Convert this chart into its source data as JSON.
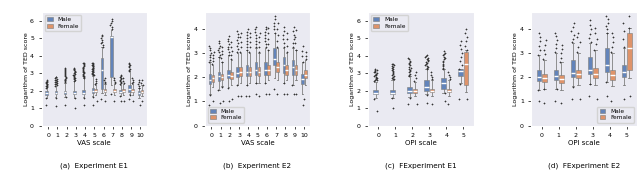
{
  "male_color": "#4C72B0",
  "female_color": "#C44E52",
  "male_color_alt": "#5B8DB8",
  "female_color_alt": "#CC6644",
  "subplot_titles": [
    "(a)  Experiment E1",
    "(b)  Experiment E2",
    "(c)  FExperiment E1",
    "(d)  FExperiment E2"
  ],
  "xlabel_ab": "VAS scale",
  "xlabel_cd": "OPI scale",
  "ylabel": "Logarithm of TED score",
  "face_color": "#EAEAF2",
  "e1_male": {
    "positions": [
      0,
      1,
      2,
      3,
      4,
      5,
      6,
      7,
      8,
      9,
      10
    ],
    "med": [
      1.87,
      1.88,
      1.9,
      1.89,
      1.87,
      2.0,
      3.2,
      5.05,
      1.95,
      2.1,
      1.87
    ],
    "q1": [
      1.77,
      1.78,
      1.8,
      1.79,
      1.78,
      1.88,
      2.1,
      2.8,
      1.85,
      1.95,
      1.77
    ],
    "q3": [
      1.96,
      1.97,
      2.0,
      2.0,
      2.05,
      2.15,
      3.85,
      5.1,
      2.05,
      2.3,
      1.96
    ],
    "whislo": [
      1.6,
      1.62,
      1.65,
      1.6,
      1.62,
      1.68,
      1.85,
      2.3,
      1.7,
      1.78,
      1.6
    ],
    "whishi": [
      2.15,
      2.25,
      2.45,
      2.55,
      2.7,
      2.85,
      4.5,
      5.5,
      2.35,
      3.1,
      2.15
    ],
    "n_fliers_above": [
      12,
      14,
      16,
      18,
      20,
      22,
      8,
      6,
      10,
      8,
      5
    ],
    "n_fliers_below": [
      2,
      2,
      2,
      2,
      2,
      2,
      1,
      1,
      2,
      2,
      1
    ],
    "fmax": [
      2.6,
      2.8,
      3.3,
      3.3,
      3.6,
      3.6,
      5.2,
      6.1,
      2.9,
      3.6,
      2.6
    ],
    "fmin": [
      1.2,
      1.1,
      1.15,
      1.0,
      1.18,
      1.15,
      1.5,
      1.8,
      1.4,
      1.5,
      1.2
    ]
  },
  "e1_female": {
    "positions": [
      5,
      6,
      7,
      8,
      9,
      10
    ],
    "med": [
      2.0,
      2.0,
      2.0,
      2.0,
      2.0,
      1.95
    ],
    "q1": [
      1.9,
      1.9,
      1.9,
      1.9,
      1.9,
      1.88
    ],
    "q3": [
      2.12,
      2.1,
      2.12,
      2.1,
      2.12,
      2.02
    ],
    "whislo": [
      1.75,
      1.75,
      1.75,
      1.75,
      1.75,
      1.72
    ],
    "whishi": [
      2.35,
      2.4,
      2.4,
      2.4,
      2.4,
      2.3
    ],
    "n_fliers_above": [
      4,
      4,
      4,
      3,
      4,
      3
    ],
    "n_fliers_below": [
      1,
      1,
      1,
      1,
      1,
      1
    ],
    "fmax": [
      2.65,
      2.7,
      2.7,
      2.7,
      2.7,
      2.6
    ],
    "fmin": [
      1.4,
      1.42,
      1.42,
      1.4,
      1.4,
      1.4
    ]
  },
  "e2_male": {
    "positions": [
      0,
      1,
      2,
      3,
      4,
      5,
      6,
      7,
      8,
      9,
      10
    ],
    "med": [
      1.9,
      2.05,
      2.1,
      2.18,
      2.22,
      2.32,
      2.3,
      2.75,
      2.5,
      2.42,
      1.92
    ],
    "q1": [
      1.72,
      1.85,
      1.95,
      2.0,
      2.05,
      2.08,
      2.08,
      2.5,
      2.18,
      2.08,
      1.72
    ],
    "q3": [
      2.12,
      2.22,
      2.32,
      2.42,
      2.52,
      2.62,
      2.62,
      3.2,
      2.82,
      2.72,
      2.12
    ],
    "whislo": [
      1.3,
      1.48,
      1.58,
      1.68,
      1.68,
      1.78,
      1.78,
      1.98,
      1.78,
      1.68,
      1.3
    ],
    "whishi": [
      2.62,
      2.82,
      2.92,
      3.02,
      3.12,
      3.22,
      3.22,
      3.82,
      3.22,
      3.22,
      2.62
    ],
    "n_fliers_above": [
      8,
      8,
      8,
      8,
      8,
      8,
      8,
      6,
      6,
      6,
      4
    ],
    "n_fliers_below": [
      2,
      2,
      2,
      2,
      2,
      2,
      2,
      1,
      2,
      2,
      1
    ],
    "fmax": [
      3.3,
      3.5,
      3.7,
      3.9,
      4.0,
      4.1,
      4.1,
      4.55,
      4.1,
      4.1,
      3.3
    ],
    "fmin": [
      0.85,
      0.92,
      1.02,
      1.22,
      1.22,
      1.32,
      1.32,
      1.52,
      1.32,
      1.32,
      0.85
    ]
  },
  "e2_female": {
    "positions": [
      0,
      1,
      2,
      3,
      4,
      5,
      6,
      7,
      8,
      9,
      10
    ],
    "med": [
      1.95,
      2.0,
      2.05,
      2.22,
      2.22,
      2.22,
      2.32,
      2.42,
      2.32,
      2.32,
      2.1
    ],
    "q1": [
      1.82,
      1.88,
      1.92,
      2.05,
      2.05,
      2.05,
      2.1,
      2.2,
      2.1,
      2.1,
      1.95
    ],
    "q3": [
      2.08,
      2.14,
      2.2,
      2.42,
      2.42,
      2.42,
      2.52,
      2.62,
      2.52,
      2.52,
      2.28
    ],
    "whislo": [
      1.58,
      1.62,
      1.68,
      1.78,
      1.78,
      1.78,
      1.88,
      1.88,
      1.88,
      1.88,
      1.68
    ],
    "whishi": [
      2.52,
      2.62,
      2.72,
      3.02,
      3.02,
      3.02,
      3.12,
      3.22,
      3.02,
      3.12,
      2.72
    ],
    "n_fliers_above": [
      5,
      5,
      5,
      5,
      5,
      5,
      5,
      5,
      4,
      4,
      3
    ],
    "n_fliers_below": [
      1,
      2,
      1,
      1,
      1,
      1,
      1,
      1,
      1,
      1,
      1
    ],
    "fmax": [
      3.05,
      3.25,
      3.45,
      3.85,
      3.85,
      3.85,
      4.05,
      4.25,
      3.85,
      3.95,
      3.05
    ],
    "fmin": [
      1.02,
      1.02,
      1.12,
      1.22,
      1.22,
      1.22,
      1.32,
      1.32,
      1.32,
      1.32,
      1.12
    ]
  },
  "fe1_male": {
    "positions": [
      0,
      1,
      2,
      3,
      4,
      5
    ],
    "med": [
      1.88,
      1.88,
      2.0,
      2.2,
      2.42,
      3.15
    ],
    "q1": [
      1.78,
      1.78,
      1.88,
      2.0,
      2.1,
      2.82
    ],
    "q3": [
      2.02,
      2.05,
      2.22,
      2.62,
      2.72,
      3.22
    ],
    "whislo": [
      1.55,
      1.58,
      1.62,
      1.78,
      1.88,
      2.42
    ],
    "whishi": [
      2.52,
      2.62,
      2.82,
      3.22,
      3.22,
      3.22
    ],
    "n_fliers_above": [
      18,
      18,
      16,
      16,
      14,
      8
    ],
    "n_fliers_below": [
      2,
      2,
      2,
      2,
      2,
      2
    ],
    "fmax": [
      3.25,
      3.55,
      3.85,
      4.05,
      4.25,
      4.85
    ],
    "fmin": [
      0.82,
      1.02,
      1.22,
      1.32,
      1.42,
      1.52
    ]
  },
  "fe1_female": {
    "positions": [
      2,
      3,
      4,
      5
    ],
    "med": [
      1.98,
      2.0,
      2.0,
      3.5
    ],
    "q1": [
      1.88,
      1.9,
      1.9,
      2.3
    ],
    "q3": [
      2.12,
      2.12,
      2.12,
      4.2
    ],
    "whislo": [
      1.68,
      1.72,
      1.72,
      1.92
    ],
    "whishi": [
      2.52,
      2.62,
      2.62,
      4.32
    ],
    "n_fliers_above": [
      4,
      4,
      4,
      6
    ],
    "n_fliers_below": [
      1,
      1,
      1,
      1
    ],
    "fmax": [
      3.05,
      3.05,
      3.05,
      5.55
    ],
    "fmin": [
      1.22,
      1.22,
      1.22,
      1.52
    ]
  },
  "fe2_male": {
    "positions": [
      0,
      1,
      2,
      3,
      4,
      5
    ],
    "med": [
      2.0,
      2.05,
      2.18,
      2.32,
      2.52,
      2.22
    ],
    "q1": [
      1.85,
      1.9,
      2.0,
      2.12,
      2.22,
      2.02
    ],
    "q3": [
      2.32,
      2.32,
      2.72,
      2.82,
      3.22,
      2.52
    ],
    "whislo": [
      1.48,
      1.52,
      1.62,
      1.72,
      1.82,
      1.68
    ],
    "whishi": [
      2.92,
      3.02,
      3.42,
      3.42,
      3.82,
      3.22
    ],
    "n_fliers_above": [
      6,
      6,
      6,
      6,
      6,
      4
    ],
    "n_fliers_below": [
      2,
      2,
      2,
      2,
      2,
      1
    ],
    "fmax": [
      3.85,
      3.85,
      4.25,
      4.35,
      4.55,
      4.25
    ],
    "fmin": [
      1.02,
      1.02,
      1.12,
      1.22,
      1.22,
      1.12
    ]
  },
  "fe2_female": {
    "positions": [
      0,
      1,
      2,
      3,
      4,
      5
    ],
    "med": [
      1.95,
      1.92,
      2.12,
      2.12,
      2.08,
      3.22
    ],
    "q1": [
      1.8,
      1.78,
      1.95,
      1.95,
      1.9,
      2.32
    ],
    "q3": [
      2.12,
      2.08,
      2.32,
      2.38,
      2.32,
      3.82
    ],
    "whislo": [
      1.52,
      1.48,
      1.68,
      1.68,
      1.62,
      1.98
    ],
    "whishi": [
      2.72,
      2.62,
      3.02,
      3.12,
      3.02,
      4.02
    ],
    "n_fliers_above": [
      5,
      5,
      5,
      5,
      5,
      4
    ],
    "n_fliers_below": [
      2,
      1,
      1,
      1,
      1,
      1
    ],
    "fmax": [
      3.55,
      3.35,
      3.85,
      4.05,
      3.85,
      5.55
    ],
    "fmin": [
      0.92,
      0.92,
      1.12,
      1.12,
      1.02,
      1.22
    ]
  }
}
